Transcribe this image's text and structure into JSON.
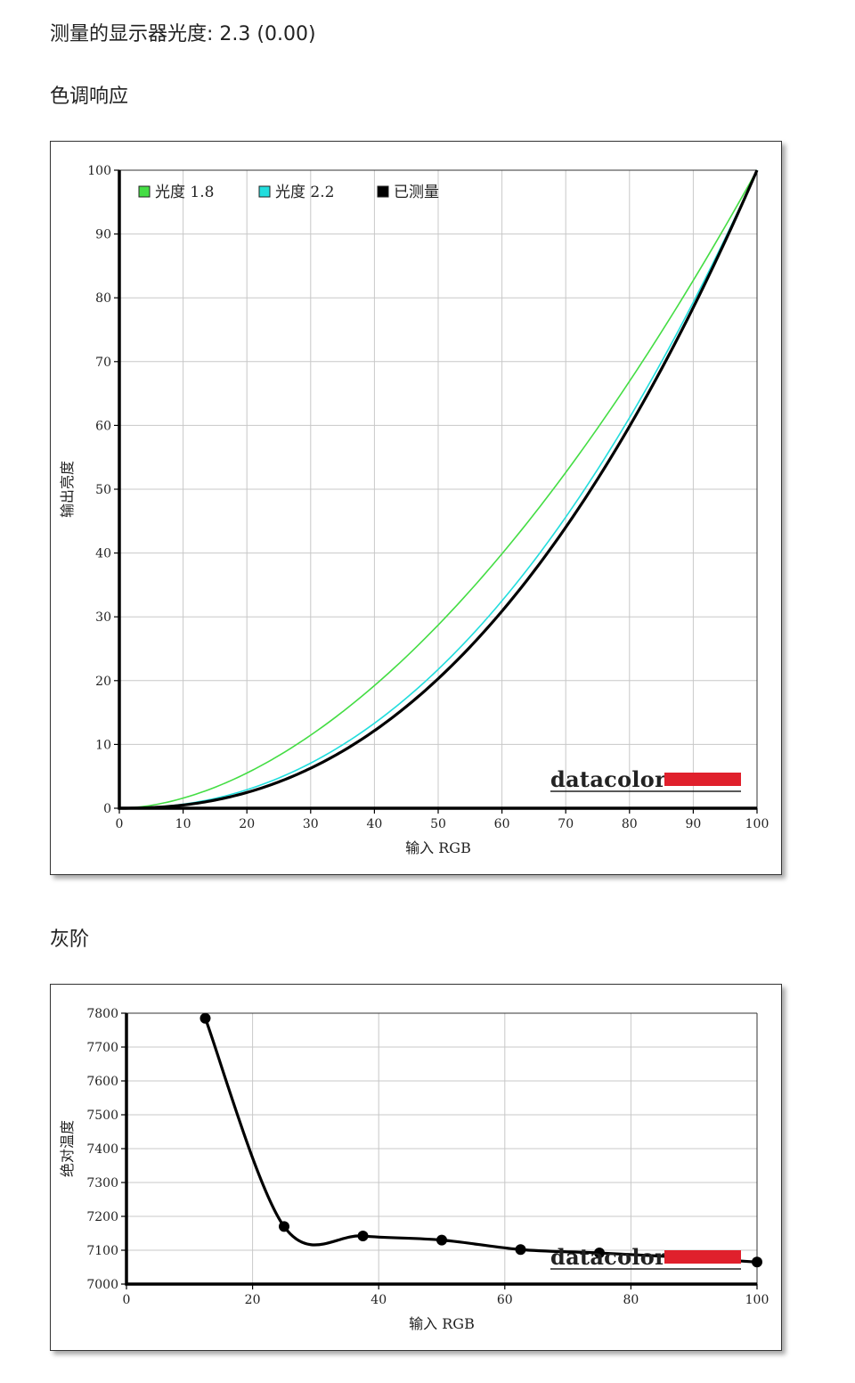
{
  "header": {
    "measured_label": "测量的显示器光度:",
    "measured_value": "2.3 (0.00)"
  },
  "sections": {
    "tone_response_title": "色调响应",
    "grayscale_title": "灰阶"
  },
  "brand": {
    "logo_text": "datacolor",
    "logo_color": "#e0202c"
  },
  "chart_data": [
    {
      "type": "line",
      "title": "",
      "xlabel": "输入 RGB",
      "ylabel": "输出亮度",
      "xlim": [
        0,
        100
      ],
      "ylim": [
        0,
        100
      ],
      "xticks": [
        0,
        10,
        20,
        30,
        40,
        50,
        60,
        70,
        80,
        90,
        100
      ],
      "yticks": [
        0,
        10,
        20,
        30,
        40,
        50,
        60,
        70,
        80,
        90,
        100
      ],
      "grid": true,
      "legend": "top-left",
      "series": [
        {
          "name": "光度 1.8",
          "color": "#44dd44",
          "gamma": 1.8
        },
        {
          "name": "光度 2.2",
          "color": "#22dddd",
          "gamma": 2.2
        },
        {
          "name": "已测量",
          "color": "#000000",
          "gamma": 2.3
        }
      ]
    },
    {
      "type": "line",
      "title": "",
      "xlabel": "输入 RGB",
      "ylabel": "绝对温度",
      "xlim": [
        0,
        100
      ],
      "ylim": [
        7000,
        7800
      ],
      "xticks": [
        0,
        20,
        40,
        60,
        80,
        100
      ],
      "yticks": [
        7000,
        7100,
        7200,
        7300,
        7400,
        7500,
        7600,
        7700,
        7800
      ],
      "grid": true,
      "series": [
        {
          "name": "",
          "color": "#000000",
          "x": [
            12.5,
            25,
            37.5,
            50,
            62.5,
            75,
            87.5,
            100
          ],
          "y": [
            7785,
            7170,
            7142,
            7130,
            7102,
            7092,
            7080,
            7065
          ]
        }
      ]
    }
  ]
}
